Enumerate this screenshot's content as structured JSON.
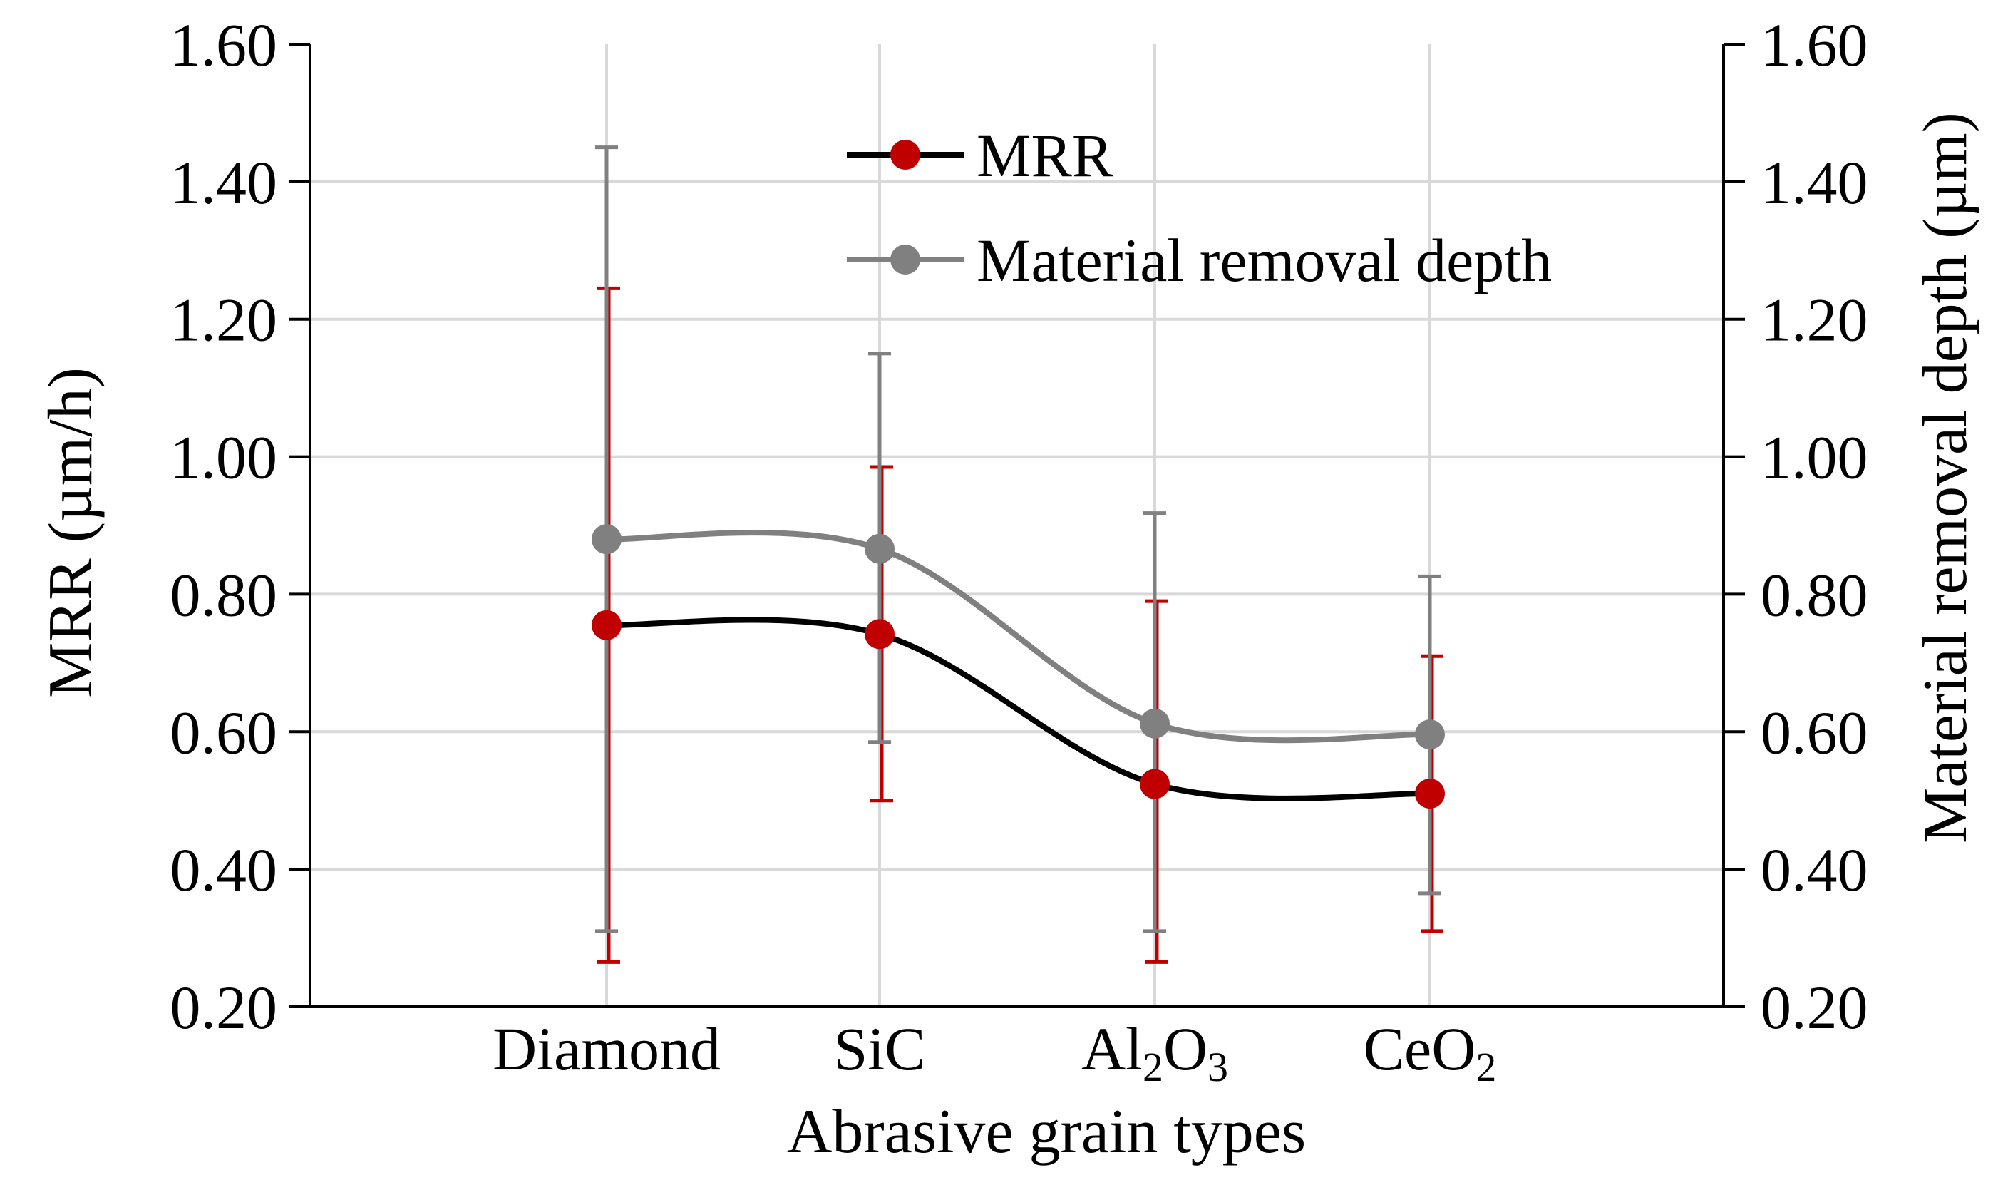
{
  "chart_data": {
    "type": "line",
    "categories": [
      "Diamond",
      "SiC",
      "Al2O3",
      "CeO2"
    ],
    "category_labels": [
      {
        "base": "Diamond",
        "sub": "",
        "tail": "",
        "sub2": ""
      },
      {
        "base": "SiC",
        "sub": "",
        "tail": "",
        "sub2": ""
      },
      {
        "base": "Al",
        "sub": "2",
        "tail": "O",
        "sub2": "3"
      },
      {
        "base": "CeO",
        "sub": "2",
        "tail": "",
        "sub2": ""
      }
    ],
    "xlabel": "Abrasive grain types",
    "ylabel": "MRR (µm/h)",
    "y2label": "Material removal depth (µm)",
    "ylim": [
      0.2,
      1.6
    ],
    "y2lim": [
      0.2,
      1.6
    ],
    "yticks": [
      "0.20",
      "0.40",
      "0.60",
      "0.80",
      "1.00",
      "1.20",
      "1.40",
      "1.60"
    ],
    "grid": true,
    "legend_position": "top-center",
    "series": [
      {
        "name": "MRR",
        "axis": "left",
        "line_color": "#000000",
        "marker_color": "#c00000",
        "error_color": "#c00000",
        "values": [
          0.755,
          0.742,
          0.524,
          0.51
        ],
        "error_low": [
          0.265,
          0.5,
          0.265,
          0.31
        ],
        "error_high": [
          1.245,
          0.985,
          0.79,
          0.71
        ]
      },
      {
        "name": "Material removal depth",
        "axis": "right",
        "line_color": "#808080",
        "marker_color": "#808080",
        "error_color": "#808080",
        "values": [
          0.88,
          0.866,
          0.612,
          0.596
        ],
        "error_low": [
          0.31,
          0.585,
          0.31,
          0.365
        ],
        "error_high": [
          1.45,
          1.15,
          0.918,
          0.826
        ]
      }
    ]
  }
}
